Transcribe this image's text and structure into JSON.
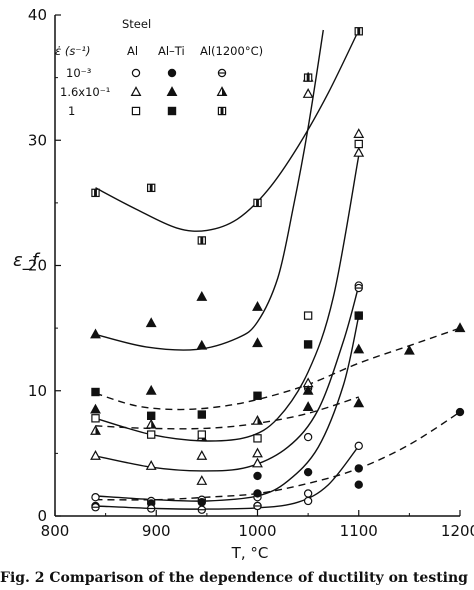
{
  "caption": "Fig. 2    Comparison of the dependence of ductility on testing",
  "chart_data": {
    "type": "scatter",
    "xlabel": "T, °C",
    "ylabel": "ε_f",
    "xlim": [
      800,
      1200
    ],
    "ylim": [
      0,
      40
    ],
    "x_ticks": [
      "800",
      "900",
      "1000",
      "1100",
      "1200"
    ],
    "y_ticks": [
      "0",
      "10",
      "20",
      "30",
      "40"
    ],
    "grid": false,
    "legend": {
      "placement": "top-left",
      "heading": "Steel",
      "rate_header": "ε̇ (s⁻¹)",
      "columns": [
        "Al",
        "Al–Ti",
        "Al(1200°C)"
      ],
      "rows": [
        "10⁻³",
        "1.6x10⁻¹",
        "1"
      ]
    },
    "series": [
      {
        "marker": "open-circle",
        "points": [
          [
            840,
            1.5
          ],
          [
            895,
            1.2
          ],
          [
            945,
            1.3
          ],
          [
            1000,
            1.5
          ],
          [
            1000,
            0.8
          ],
          [
            1050,
            6.3
          ],
          [
            1050,
            1.8
          ],
          [
            1050,
            1.2
          ],
          [
            1100,
            5.6
          ],
          [
            1100,
            18.4
          ]
        ]
      },
      {
        "marker": "filled-circle",
        "points": [
          [
            840,
            0.8
          ],
          [
            895,
            1.0
          ],
          [
            945,
            1.1
          ],
          [
            1000,
            3.2
          ],
          [
            1000,
            1.8
          ],
          [
            1050,
            3.5
          ],
          [
            1100,
            3.8
          ],
          [
            1100,
            2.5
          ],
          [
            1200,
            8.3
          ]
        ]
      },
      {
        "marker": "half-circle",
        "points": [
          [
            840,
            0.7
          ],
          [
            895,
            0.6
          ],
          [
            945,
            0.5
          ],
          [
            1000,
            0.8
          ],
          [
            1050,
            10.2
          ],
          [
            1100,
            18.2
          ],
          [
            1100,
            16.0
          ]
        ]
      },
      {
        "marker": "open-triangle",
        "points": [
          [
            840,
            4.8
          ],
          [
            895,
            4.0
          ],
          [
            945,
            4.8
          ],
          [
            945,
            2.8
          ],
          [
            1000,
            5.0
          ],
          [
            1000,
            4.2
          ],
          [
            1050,
            10.6
          ],
          [
            1050,
            33.7
          ],
          [
            1100,
            30.5
          ],
          [
            1100,
            29.0
          ]
        ]
      },
      {
        "marker": "filled-triangle",
        "points": [
          [
            840,
            14.5
          ],
          [
            840,
            8.5
          ],
          [
            895,
            15.4
          ],
          [
            895,
            10.0
          ],
          [
            945,
            17.5
          ],
          [
            945,
            13.6
          ],
          [
            1000,
            16.7
          ],
          [
            1000,
            13.8
          ],
          [
            1050,
            10.0
          ],
          [
            1050,
            8.7
          ],
          [
            1100,
            13.3
          ],
          [
            1100,
            9.0
          ],
          [
            1150,
            13.2
          ],
          [
            1200,
            15.0
          ]
        ]
      },
      {
        "marker": "half-triangle",
        "points": [
          [
            840,
            6.8
          ],
          [
            895,
            7.3
          ],
          [
            945,
            6.3
          ],
          [
            1000,
            7.6
          ],
          [
            1050,
            35.0
          ]
        ]
      },
      {
        "marker": "open-square",
        "points": [
          [
            840,
            7.8
          ],
          [
            895,
            6.5
          ],
          [
            945,
            6.5
          ],
          [
            1000,
            6.2
          ],
          [
            1050,
            16.0
          ],
          [
            1100,
            29.7
          ]
        ]
      },
      {
        "marker": "filled-square",
        "points": [
          [
            840,
            9.9
          ],
          [
            895,
            8.0
          ],
          [
            945,
            8.1
          ],
          [
            1000,
            9.6
          ],
          [
            1050,
            13.7
          ],
          [
            1100,
            16.0
          ]
        ]
      },
      {
        "marker": "half-square",
        "points": [
          [
            840,
            25.8
          ],
          [
            895,
            26.2
          ],
          [
            945,
            22.0
          ],
          [
            1000,
            25.0
          ],
          [
            1050,
            35.0
          ],
          [
            1100,
            38.7
          ]
        ]
      }
    ],
    "curves": [
      {
        "style": "solid",
        "points": [
          [
            840,
            26.2
          ],
          [
            880,
            24.5
          ],
          [
            920,
            23.0
          ],
          [
            950,
            22.8
          ],
          [
            980,
            23.7
          ],
          [
            1010,
            26.0
          ],
          [
            1040,
            29.5
          ],
          [
            1070,
            33.8
          ],
          [
            1100,
            38.8
          ]
        ]
      },
      {
        "style": "solid",
        "points": [
          [
            840,
            14.5
          ],
          [
            890,
            13.5
          ],
          [
            940,
            13.3
          ],
          [
            980,
            14.2
          ],
          [
            1000,
            15.5
          ],
          [
            1020,
            19.0
          ],
          [
            1035,
            24.5
          ],
          [
            1050,
            31.0
          ],
          [
            1065,
            38.8
          ]
        ]
      },
      {
        "style": "solid",
        "points": [
          [
            840,
            7.8
          ],
          [
            895,
            6.5
          ],
          [
            945,
            6.0
          ],
          [
            990,
            6.3
          ],
          [
            1020,
            7.8
          ],
          [
            1050,
            11.5
          ],
          [
            1075,
            17.5
          ],
          [
            1100,
            28.8
          ]
        ]
      },
      {
        "style": "solid",
        "points": [
          [
            840,
            4.8
          ],
          [
            895,
            3.9
          ],
          [
            945,
            3.6
          ],
          [
            990,
            3.9
          ],
          [
            1030,
            5.5
          ],
          [
            1060,
            8.5
          ],
          [
            1085,
            14.0
          ],
          [
            1100,
            18.4
          ]
        ]
      },
      {
        "style": "solid",
        "points": [
          [
            840,
            1.6
          ],
          [
            900,
            1.3
          ],
          [
            950,
            1.2
          ],
          [
            1000,
            1.6
          ],
          [
            1030,
            2.8
          ],
          [
            1060,
            5.5
          ],
          [
            1085,
            10.5
          ],
          [
            1100,
            16.0
          ]
        ]
      },
      {
        "style": "solid",
        "points": [
          [
            840,
            0.8
          ],
          [
            900,
            0.6
          ],
          [
            950,
            0.55
          ],
          [
            1000,
            0.65
          ],
          [
            1040,
            1.1
          ],
          [
            1070,
            2.5
          ],
          [
            1100,
            5.6
          ]
        ]
      },
      {
        "style": "dashed",
        "points": [
          [
            840,
            9.8
          ],
          [
            880,
            8.8
          ],
          [
            920,
            8.5
          ],
          [
            960,
            8.7
          ],
          [
            1000,
            9.3
          ],
          [
            1050,
            10.5
          ],
          [
            1100,
            12.2
          ],
          [
            1150,
            13.6
          ],
          [
            1200,
            15.0
          ]
        ]
      },
      {
        "style": "dashed",
        "points": [
          [
            840,
            7.2
          ],
          [
            890,
            7.0
          ],
          [
            950,
            7.0
          ],
          [
            1000,
            7.4
          ],
          [
            1050,
            8.2
          ],
          [
            1100,
            9.5
          ]
        ]
      },
      {
        "style": "dashed",
        "points": [
          [
            840,
            1.3
          ],
          [
            900,
            1.3
          ],
          [
            950,
            1.5
          ],
          [
            1000,
            1.8
          ],
          [
            1050,
            2.6
          ],
          [
            1100,
            3.8
          ],
          [
            1150,
            5.7
          ],
          [
            1200,
            8.3
          ]
        ]
      }
    ]
  }
}
